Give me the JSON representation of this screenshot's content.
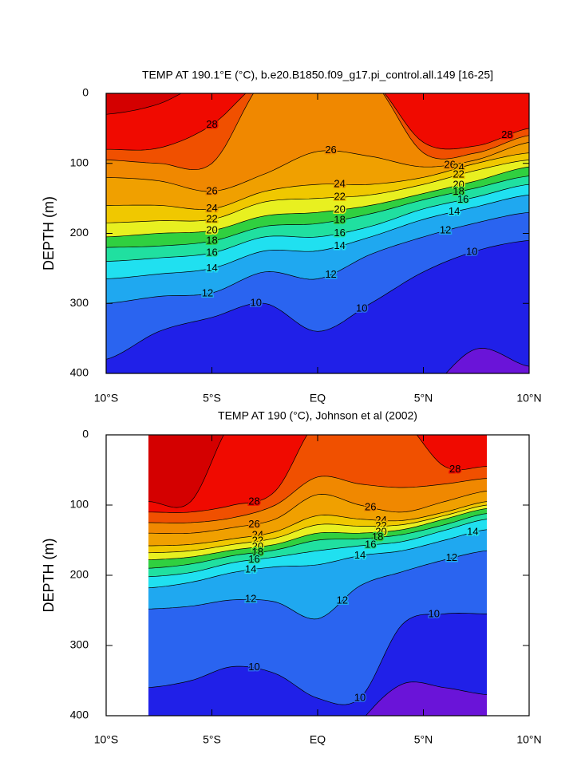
{
  "chart_data": [
    {
      "type": "contour",
      "title": "TEMP AT 190.1°E (°C), b.e20.B1850.f09_g17.pi_control.all.149 [16-25]",
      "ylabel": "DEPTH (m)",
      "xlim": [
        -10,
        10
      ],
      "xticks": [
        {
          "value": -10,
          "label": "10°S"
        },
        {
          "value": -5,
          "label": "5°S"
        },
        {
          "value": 0,
          "label": "EQ"
        },
        {
          "value": 5,
          "label": "5°N"
        },
        {
          "value": 10,
          "label": "10°N"
        }
      ],
      "ylim": [
        0,
        400
      ],
      "y_inverted": true,
      "yticks": [
        0,
        100,
        200,
        300,
        400
      ],
      "x": [
        -10,
        -7.5,
        -5,
        -2.5,
        0,
        2.5,
        5,
        7.5,
        10
      ],
      "base_color": "#6a14d8",
      "isotherms": [
        {
          "level": 29,
          "color": "#d40000",
          "depth": [
            30,
            15,
            -20,
            -20,
            -20,
            -20,
            -20,
            -20,
            -20
          ]
        },
        {
          "level": 28,
          "color": "#f00a00",
          "depth": [
            80,
            78,
            45,
            -20,
            -20,
            -20,
            70,
            75,
            50
          ]
        },
        {
          "level": 27,
          "color": "#f05000",
          "depth": [
            95,
            100,
            100,
            -20,
            -20,
            -20,
            85,
            85,
            60
          ]
        },
        {
          "level": 26,
          "color": "#f08800",
          "depth": [
            120,
            125,
            140,
            115,
            83,
            90,
            105,
            95,
            70
          ]
        },
        {
          "level": 24,
          "color": "#f0a000",
          "depth": [
            160,
            160,
            165,
            140,
            130,
            130,
            120,
            100,
            85
          ]
        },
        {
          "level": 22,
          "color": "#f0c800",
          "depth": [
            185,
            182,
            180,
            155,
            150,
            145,
            130,
            110,
            95
          ]
        },
        {
          "level": 20,
          "color": "#e8f020",
          "depth": [
            205,
            200,
            196,
            175,
            170,
            160,
            143,
            125,
            105
          ]
        },
        {
          "level": 18,
          "color": "#30d040",
          "depth": [
            220,
            218,
            211,
            190,
            186,
            172,
            152,
            135,
            118
          ]
        },
        {
          "level": 16,
          "color": "#20e0a0",
          "depth": [
            240,
            235,
            228,
            205,
            205,
            190,
            165,
            148,
            130
          ]
        },
        {
          "level": 14,
          "color": "#20e0f0",
          "depth": [
            265,
            258,
            250,
            225,
            225,
            205,
            180,
            162,
            145
          ]
        },
        {
          "level": 12,
          "color": "#1fa8f0",
          "depth": [
            300,
            290,
            285,
            255,
            265,
            230,
            205,
            185,
            170
          ]
        },
        {
          "level": 10,
          "color": "#2a64f0",
          "depth": [
            380,
            340,
            320,
            300,
            340,
            300,
            255,
            225,
            210
          ]
        },
        {
          "level": 9,
          "color": "#2020e8",
          "depth": [
            460,
            460,
            460,
            460,
            460,
            460,
            430,
            365,
            390
          ]
        }
      ]
    },
    {
      "type": "contour",
      "title": "TEMP AT 190 (°C), Johnson et al (2002)",
      "ylabel": "DEPTH (m)",
      "xlim": [
        -10,
        10
      ],
      "xticks": [
        {
          "value": -10,
          "label": "10°S"
        },
        {
          "value": -5,
          "label": "5°S"
        },
        {
          "value": 0,
          "label": "EQ"
        },
        {
          "value": 5,
          "label": "5°N"
        },
        {
          "value": 10,
          "label": "10°N"
        }
      ],
      "ylim": [
        0,
        400
      ],
      "y_inverted": true,
      "yticks": [
        0,
        100,
        200,
        300,
        400
      ],
      "x": [
        -8,
        -6,
        -4,
        -2,
        0,
        2,
        4,
        6,
        8
      ],
      "base_color": "#6a14d8",
      "isotherms": [
        {
          "level": 29,
          "color": "#d40000",
          "depth": [
            95,
            95,
            -20,
            -20,
            -20,
            -20,
            -20,
            -20,
            -20
          ]
        },
        {
          "level": 28,
          "color": "#f00a00",
          "depth": [
            110,
            110,
            100,
            80,
            -20,
            -20,
            -20,
            45,
            45
          ]
        },
        {
          "level": 27,
          "color": "#f05000",
          "depth": [
            125,
            125,
            118,
            100,
            60,
            70,
            75,
            70,
            62
          ]
        },
        {
          "level": 26,
          "color": "#f08800",
          "depth": [
            140,
            140,
            132,
            120,
            85,
            100,
            110,
            95,
            80
          ]
        },
        {
          "level": 24,
          "color": "#f0a000",
          "depth": [
            158,
            156,
            148,
            138,
            115,
            120,
            122,
            110,
            95
          ]
        },
        {
          "level": 22,
          "color": "#f0c800",
          "depth": [
            168,
            165,
            156,
            147,
            128,
            130,
            128,
            115,
            100
          ]
        },
        {
          "level": 20,
          "color": "#e8f020",
          "depth": [
            178,
            174,
            164,
            156,
            140,
            140,
            135,
            120,
            105
          ]
        },
        {
          "level": 18,
          "color": "#30d040",
          "depth": [
            190,
            184,
            172,
            164,
            150,
            148,
            142,
            128,
            112
          ]
        },
        {
          "level": 16,
          "color": "#20e0a0",
          "depth": [
            202,
            196,
            182,
            174,
            165,
            158,
            152,
            136,
            120
          ]
        },
        {
          "level": 14,
          "color": "#20e0f0",
          "depth": [
            218,
            210,
            196,
            188,
            185,
            172,
            165,
            150,
            135
          ]
        },
        {
          "level": 12,
          "color": "#1fa8f0",
          "depth": [
            248,
            244,
            235,
            238,
            262,
            215,
            195,
            178,
            165
          ]
        },
        {
          "level": 10,
          "color": "#2a64f0",
          "depth": [
            360,
            350,
            330,
            340,
            375,
            375,
            270,
            255,
            255
          ]
        },
        {
          "level": 9,
          "color": "#2020e8",
          "depth": [
            500,
            500,
            500,
            500,
            500,
            410,
            355,
            360,
            370
          ]
        }
      ]
    }
  ]
}
